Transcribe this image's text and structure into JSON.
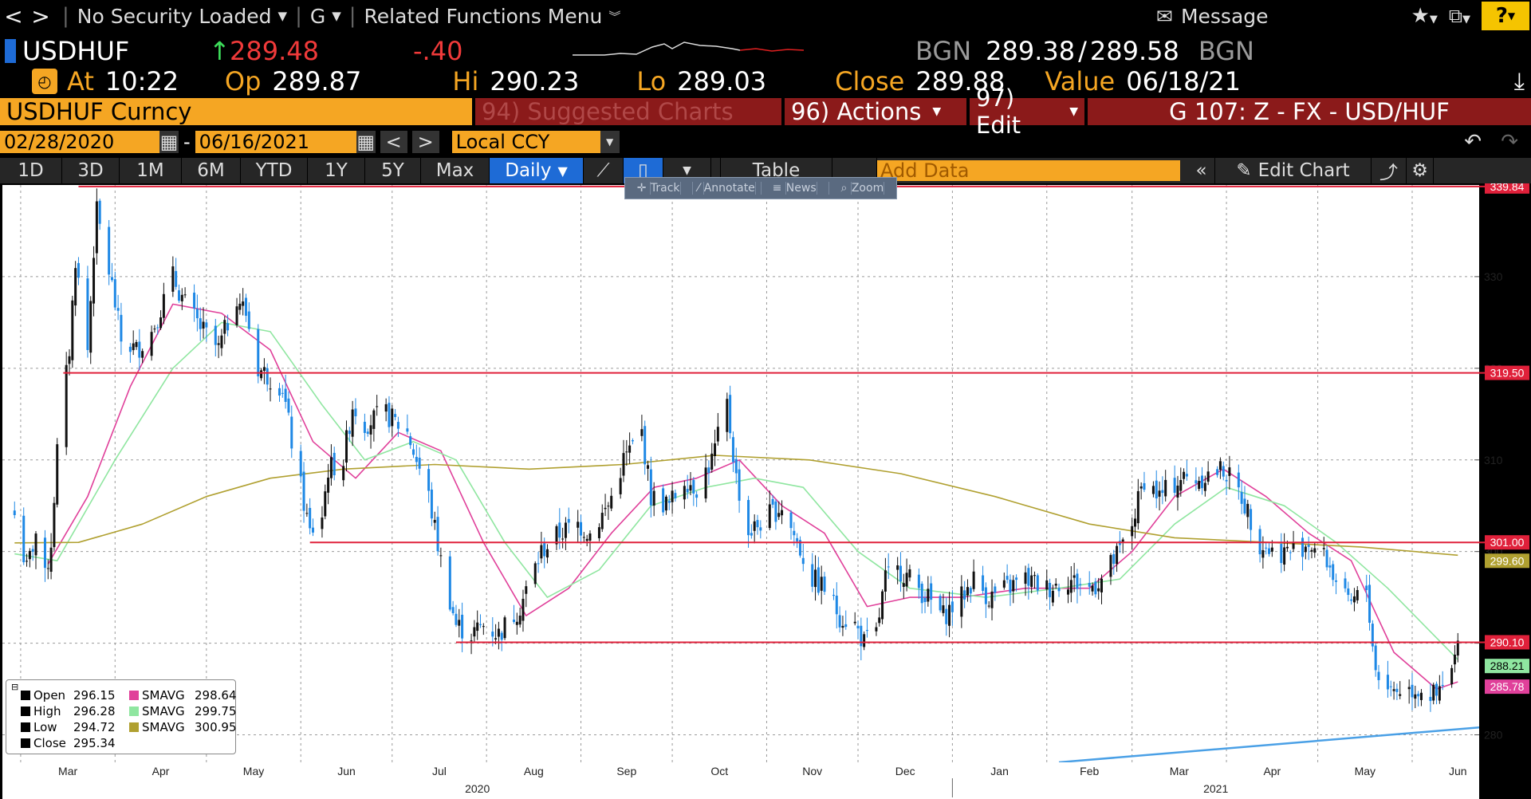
{
  "topbar": {
    "back": "<",
    "forward": ">",
    "security": "No Security Loaded",
    "g_menu": "G",
    "related": "Related Functions Menu",
    "message": "Message",
    "help": "?"
  },
  "quote": {
    "ticker": "USDHUF",
    "last": "289.48",
    "change": "-.40",
    "bid_src": "BGN",
    "bid": "289.38",
    "ask": "289.58",
    "ask_src": "BGN",
    "at_label": "At",
    "time": "10:22",
    "op_label": "Op",
    "open": "289.87",
    "hi_label": "Hi",
    "high": "290.23",
    "lo_label": "Lo",
    "low": "289.03",
    "close_label": "Close",
    "close": "289.88",
    "value_label": "Value",
    "value_date": "06/18/21"
  },
  "function_bar": {
    "security_name": "USDHUF Curncy",
    "suggested": "94) Suggested Charts",
    "actions": "96) Actions",
    "edit": "97) Edit",
    "page_title": "G 107: Z - FX - USD/HUF"
  },
  "date_bar": {
    "start": "02/28/2020",
    "dash": "-",
    "end": "06/16/2021",
    "prev": "<",
    "next": ">",
    "currency": "Local CCY"
  },
  "periods": [
    "1D",
    "3D",
    "1M",
    "6M",
    "YTD",
    "1Y",
    "5Y",
    "Max"
  ],
  "toolbar": {
    "frequency": "Daily",
    "table": "Table",
    "add_data_placeholder": "Add Data",
    "collapse": "«",
    "edit_chart": "Edit Chart"
  },
  "chart_tools": [
    "Track",
    "Annotate",
    "News",
    "Zoom"
  ],
  "legend": {
    "open_label": "Open",
    "open": "296.15",
    "high_label": "High",
    "high": "296.28",
    "low_label": "Low",
    "low": "294.72",
    "close_label": "Close",
    "close": "295.34",
    "sma1_label": "SMAVG",
    "sma1": "298.64",
    "sma2_label": "SMAVG",
    "sma2": "299.75",
    "sma3_label": "SMAVG",
    "sma3": "300.95"
  },
  "colors": {
    "background": "#000000",
    "plot": "#ffffff",
    "accent_orange": "#f5a623",
    "bar_red": "#8b1a1a",
    "up": "#000000",
    "down": "#1e88e5",
    "sma_pink": "#e0409a",
    "sma_green": "#8fe6a0",
    "sma_olive": "#b0a030",
    "level_line": "#e0203a",
    "trend_line": "#4aa0e6"
  },
  "chart_data": {
    "type": "candlestick",
    "title": "",
    "xlabel": "",
    "ylabel": "",
    "ylim": [
      277,
      340
    ],
    "y_ticks": [
      280,
      290,
      300,
      310,
      320,
      330
    ],
    "x_tick_labels": [
      "Mar",
      "Apr",
      "May",
      "Jun",
      "Jul",
      "Aug",
      "Sep",
      "Oct",
      "Nov",
      "Dec",
      "Jan",
      "Feb",
      "Mar",
      "Apr",
      "May",
      "Jun"
    ],
    "year_labels": [
      "2020",
      "2021"
    ],
    "grid": true,
    "legend_position": "bottom-left",
    "price_path": [
      [
        "2020-02-28",
        304
      ],
      [
        "2020-03-03",
        298
      ],
      [
        "2020-03-06",
        302
      ],
      [
        "2020-03-09",
        297
      ],
      [
        "2020-03-11",
        301
      ],
      [
        "2020-03-13",
        311
      ],
      [
        "2020-03-17",
        322
      ],
      [
        "2020-03-19",
        332
      ],
      [
        "2020-03-23",
        322
      ],
      [
        "2020-03-25",
        333
      ],
      [
        "2020-03-26",
        337
      ],
      [
        "2020-03-31",
        329
      ],
      [
        "2020-04-03",
        323
      ],
      [
        "2020-04-08",
        322
      ],
      [
        "2020-04-13",
        324
      ],
      [
        "2020-04-20",
        330
      ],
      [
        "2020-04-24",
        327
      ],
      [
        "2020-04-30",
        324
      ],
      [
        "2020-05-05",
        322
      ],
      [
        "2020-05-11",
        328
      ],
      [
        "2020-05-14",
        326
      ],
      [
        "2020-05-18",
        320
      ],
      [
        "2020-05-22",
        319
      ],
      [
        "2020-05-26",
        318
      ],
      [
        "2020-05-29",
        312
      ],
      [
        "2020-06-01",
        307
      ],
      [
        "2020-06-04",
        302
      ],
      [
        "2020-06-08",
        304
      ],
      [
        "2020-06-10",
        309
      ],
      [
        "2020-06-15",
        310
      ],
      [
        "2020-06-18",
        316
      ],
      [
        "2020-06-22",
        314
      ],
      [
        "2020-06-29",
        315
      ],
      [
        "2020-07-06",
        313
      ],
      [
        "2020-07-13",
        306
      ],
      [
        "2020-07-17",
        299
      ],
      [
        "2020-07-22",
        292
      ],
      [
        "2020-07-27",
        291
      ],
      [
        "2020-07-31",
        292
      ],
      [
        "2020-08-05",
        291
      ],
      [
        "2020-08-12",
        294
      ],
      [
        "2020-08-19",
        300
      ],
      [
        "2020-08-25",
        302
      ],
      [
        "2020-08-31",
        303
      ],
      [
        "2020-09-04",
        302
      ],
      [
        "2020-09-10",
        305
      ],
      [
        "2020-09-15",
        310
      ],
      [
        "2020-09-21",
        313
      ],
      [
        "2020-09-24",
        306
      ],
      [
        "2020-09-30",
        305
      ],
      [
        "2020-10-05",
        308
      ],
      [
        "2020-10-09",
        307
      ],
      [
        "2020-10-14",
        310
      ],
      [
        "2020-10-19",
        316
      ],
      [
        "2020-10-22",
        308
      ],
      [
        "2020-10-26",
        302
      ],
      [
        "2020-11-02",
        304
      ],
      [
        "2020-11-06",
        305
      ],
      [
        "2020-11-11",
        301
      ],
      [
        "2020-11-16",
        297
      ],
      [
        "2020-11-20",
        296
      ],
      [
        "2020-11-25",
        293
      ],
      [
        "2020-11-30",
        292
      ],
      [
        "2020-12-03",
        290
      ],
      [
        "2020-12-07",
        291
      ],
      [
        "2020-12-10",
        297
      ],
      [
        "2020-12-15",
        298
      ],
      [
        "2020-12-21",
        296
      ],
      [
        "2020-12-29",
        293
      ],
      [
        "2021-01-04",
        295
      ],
      [
        "2021-01-08",
        297
      ],
      [
        "2021-01-13",
        295
      ],
      [
        "2021-01-19",
        296
      ],
      [
        "2021-01-25",
        297
      ],
      [
        "2021-02-01",
        296
      ],
      [
        "2021-02-08",
        297
      ],
      [
        "2021-02-15",
        296
      ],
      [
        "2021-02-19",
        297
      ],
      [
        "2021-02-25",
        300
      ],
      [
        "2021-03-01",
        303
      ],
      [
        "2021-03-05",
        308
      ],
      [
        "2021-03-10",
        306
      ],
      [
        "2021-03-17",
        308
      ],
      [
        "2021-03-23",
        308
      ],
      [
        "2021-03-31",
        309
      ],
      [
        "2021-04-06",
        306
      ],
      [
        "2021-04-12",
        301
      ],
      [
        "2021-04-16",
        300
      ],
      [
        "2021-04-22",
        300
      ],
      [
        "2021-04-28",
        301
      ],
      [
        "2021-05-04",
        299
      ],
      [
        "2021-05-11",
        294
      ],
      [
        "2021-05-17",
        296
      ],
      [
        "2021-05-20",
        287
      ],
      [
        "2021-05-25",
        285
      ],
      [
        "2021-05-31",
        285
      ],
      [
        "2021-06-04",
        285
      ],
      [
        "2021-06-09",
        284
      ],
      [
        "2021-06-11",
        285
      ],
      [
        "2021-06-14",
        287
      ],
      [
        "2021-06-16",
        289.5
      ]
    ],
    "series": [
      {
        "name": "SMAVG",
        "color": "#e0409a",
        "points": [
          [
            "2020-03-10",
            298.64
          ],
          [
            "2020-03-23",
            306
          ],
          [
            "2020-04-06",
            318
          ],
          [
            "2020-04-20",
            327
          ],
          [
            "2020-05-06",
            326
          ],
          [
            "2020-05-22",
            322
          ],
          [
            "2020-06-05",
            312
          ],
          [
            "2020-06-19",
            308
          ],
          [
            "2020-07-03",
            313
          ],
          [
            "2020-07-17",
            311
          ],
          [
            "2020-07-31",
            301
          ],
          [
            "2020-08-14",
            293
          ],
          [
            "2020-08-28",
            296
          ],
          [
            "2020-09-11",
            302
          ],
          [
            "2020-09-25",
            307
          ],
          [
            "2020-10-09",
            308
          ],
          [
            "2020-10-23",
            310
          ],
          [
            "2020-11-06",
            305
          ],
          [
            "2020-11-20",
            302
          ],
          [
            "2020-12-04",
            294
          ],
          [
            "2020-12-18",
            295
          ],
          [
            "2021-01-04",
            295
          ],
          [
            "2021-01-25",
            296
          ],
          [
            "2021-02-15",
            296
          ],
          [
            "2021-03-01",
            300
          ],
          [
            "2021-03-15",
            306
          ],
          [
            "2021-03-31",
            309
          ],
          [
            "2021-04-14",
            306
          ],
          [
            "2021-04-28",
            302
          ],
          [
            "2021-05-12",
            299
          ],
          [
            "2021-05-26",
            289
          ],
          [
            "2021-06-09",
            285
          ],
          [
            "2021-06-16",
            285.78
          ]
        ]
      },
      {
        "name": "SMAVG",
        "color": "#8fe6a0",
        "points": [
          [
            "2020-02-28",
            299.75
          ],
          [
            "2020-03-13",
            299
          ],
          [
            "2020-04-01",
            310
          ],
          [
            "2020-04-20",
            320
          ],
          [
            "2020-05-06",
            325
          ],
          [
            "2020-05-22",
            324
          ],
          [
            "2020-06-08",
            316
          ],
          [
            "2020-06-22",
            310
          ],
          [
            "2020-07-08",
            312
          ],
          [
            "2020-07-22",
            310
          ],
          [
            "2020-08-07",
            301
          ],
          [
            "2020-08-21",
            295
          ],
          [
            "2020-09-07",
            298
          ],
          [
            "2020-09-24",
            305
          ],
          [
            "2020-10-12",
            307
          ],
          [
            "2020-10-28",
            308
          ],
          [
            "2020-11-13",
            307
          ],
          [
            "2020-12-01",
            300
          ],
          [
            "2020-12-18",
            296
          ],
          [
            "2021-01-12",
            295
          ],
          [
            "2021-02-05",
            296
          ],
          [
            "2021-02-25",
            297
          ],
          [
            "2021-03-15",
            303
          ],
          [
            "2021-04-01",
            307
          ],
          [
            "2021-04-20",
            305
          ],
          [
            "2021-05-07",
            301
          ],
          [
            "2021-05-24",
            296
          ],
          [
            "2021-06-16",
            288.21
          ]
        ]
      },
      {
        "name": "SMAVG",
        "color": "#b0a030",
        "points": [
          [
            "2020-02-28",
            300.95
          ],
          [
            "2020-03-20",
            301
          ],
          [
            "2020-04-10",
            303
          ],
          [
            "2020-05-01",
            306
          ],
          [
            "2020-05-22",
            308
          ],
          [
            "2020-06-15",
            309
          ],
          [
            "2020-07-15",
            309.5
          ],
          [
            "2020-08-15",
            309
          ],
          [
            "2020-09-15",
            309.5
          ],
          [
            "2020-10-15",
            310.5
          ],
          [
            "2020-11-15",
            310
          ],
          [
            "2020-12-15",
            308.5
          ],
          [
            "2021-01-15",
            306
          ],
          [
            "2021-02-15",
            303
          ],
          [
            "2021-03-15",
            301.5
          ],
          [
            "2021-04-15",
            301
          ],
          [
            "2021-05-15",
            300.5
          ],
          [
            "2021-06-16",
            299.6
          ]
        ]
      },
      {
        "name": "trend",
        "color": "#4aa0e6",
        "points": [
          [
            "2021-02-05",
            277
          ],
          [
            "2021-06-30",
            281
          ]
        ]
      }
    ],
    "levels": [
      {
        "value": 339.84,
        "label": "339.84",
        "from": "2020-03-20"
      },
      {
        "value": 319.5,
        "label": "319.50",
        "from": "2020-03-15"
      },
      {
        "value": 301.0,
        "label": "301.00",
        "from": "2020-06-04"
      },
      {
        "value": 290.1,
        "label": "290.10",
        "from": "2020-07-22"
      }
    ],
    "right_labels": [
      {
        "value": 299.6,
        "label": "299.60",
        "color": "#b0a030"
      },
      {
        "value": 288.21,
        "label": "288.21",
        "color": "#8fe6a0"
      },
      {
        "value": 285.78,
        "label": "285.78",
        "color": "#e0409a"
      }
    ]
  }
}
